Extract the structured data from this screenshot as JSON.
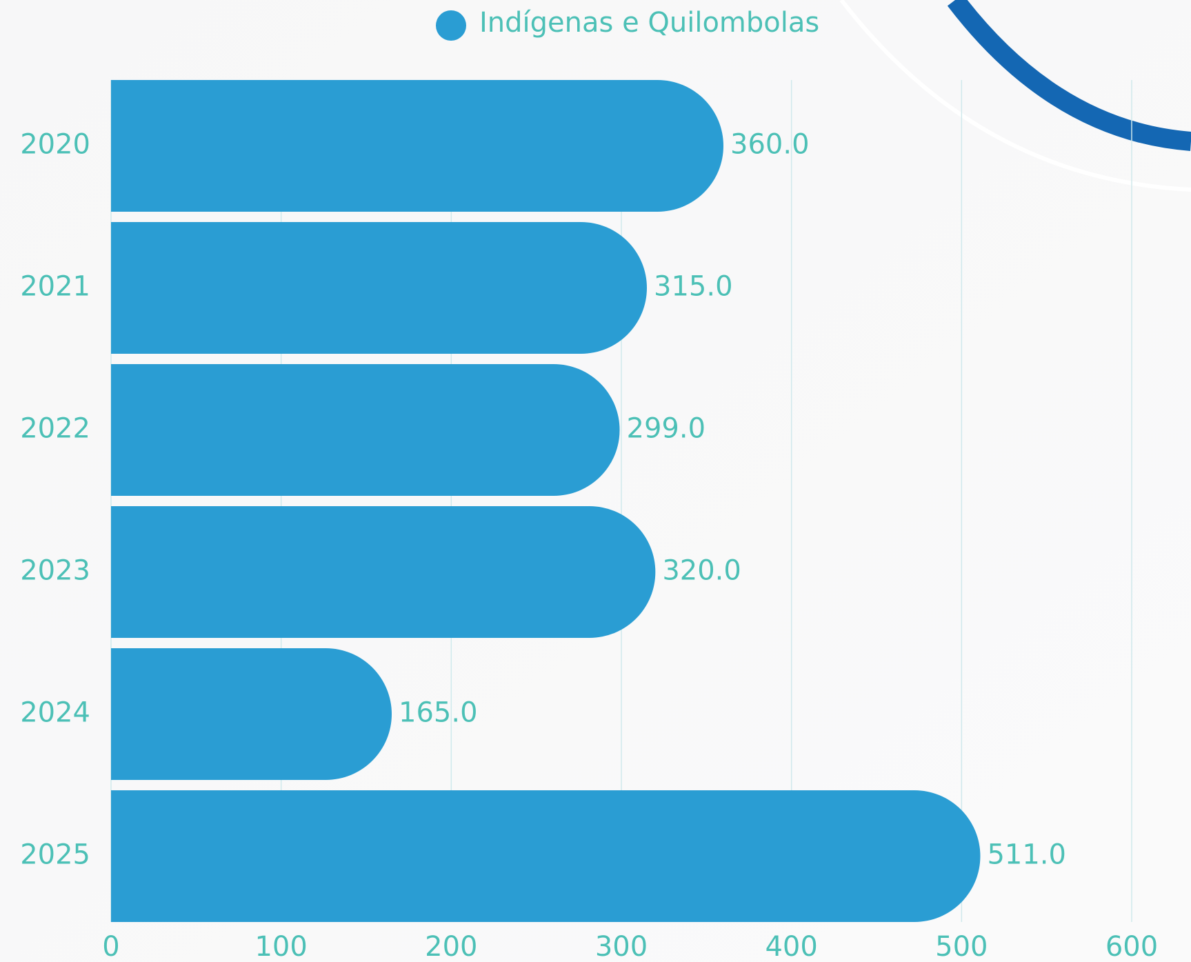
{
  "chart_data": {
    "type": "bar",
    "orientation": "horizontal",
    "categories": [
      "2020",
      "2021",
      "2022",
      "2023",
      "2024",
      "2025"
    ],
    "series": [
      {
        "name": "Indígenas e Quilombolas",
        "color": "#2a9dd3",
        "values": [
          360,
          315,
          299,
          320,
          165,
          511
        ],
        "value_labels": [
          "360.0",
          "315.0",
          "299.0",
          "320.0",
          "165.0",
          "511.0"
        ]
      }
    ],
    "xlim": [
      0,
      600
    ],
    "xticks": [
      0,
      100,
      200,
      300,
      400,
      500,
      600
    ],
    "grid": true,
    "legend": "top"
  }
}
